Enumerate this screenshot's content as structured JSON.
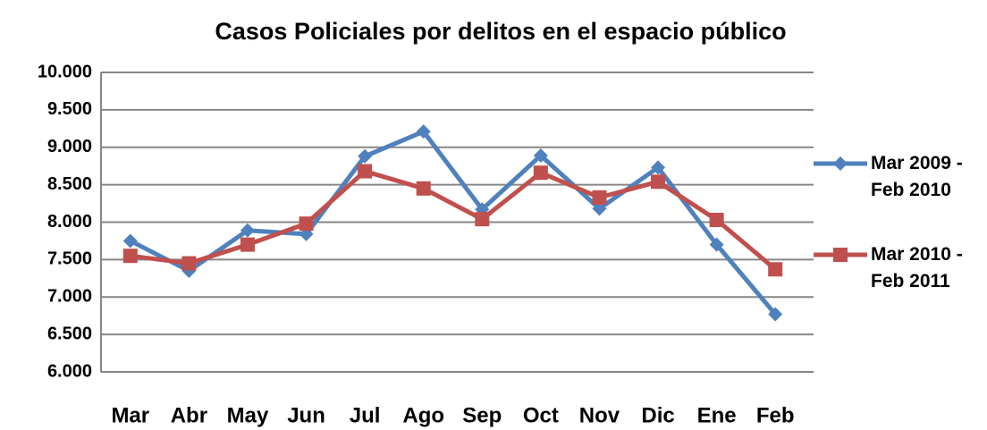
{
  "chart_data": {
    "type": "line",
    "title": "Casos Policiales por delitos en el espacio público",
    "categories": [
      "Mar",
      "Abr",
      "May",
      "Jun",
      "Jul",
      "Ago",
      "Sep",
      "Oct",
      "Nov",
      "Dic",
      "Ene",
      "Feb"
    ],
    "series": [
      {
        "name": "Mar 2009 - Feb 2010",
        "color": "#4f81bd",
        "marker": "diamond",
        "values": [
          7750,
          7350,
          7890,
          7840,
          8880,
          9210,
          8170,
          8890,
          8180,
          8730,
          7700,
          6770
        ]
      },
      {
        "name": "Mar 2010 - Feb 2011",
        "color": "#c0504d",
        "marker": "square",
        "values": [
          7550,
          7450,
          7700,
          7980,
          8680,
          8450,
          8040,
          8660,
          8330,
          8540,
          8030,
          7370
        ]
      }
    ],
    "ylim": [
      6000,
      10000
    ],
    "yticks": [
      {
        "value": 6000,
        "label": "6.000"
      },
      {
        "value": 6500,
        "label": "6.500"
      },
      {
        "value": 7000,
        "label": "7.000"
      },
      {
        "value": 7500,
        "label": "7.500"
      },
      {
        "value": 8000,
        "label": "8.000"
      },
      {
        "value": 8500,
        "label": "8.500"
      },
      {
        "value": 9000,
        "label": "9.000"
      },
      {
        "value": 9500,
        "label": "9.500"
      },
      {
        "value": 10000,
        "label": "10.000"
      }
    ],
    "grid": true,
    "legend": "right"
  }
}
